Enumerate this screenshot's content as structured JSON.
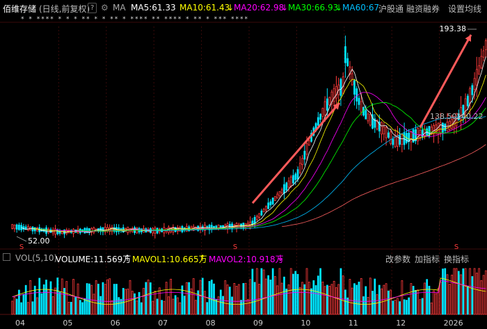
{
  "header": {
    "stock_name": "佰维存储",
    "period": "(日线,前复权)",
    "help": "?",
    "ma_label": "MA",
    "ma5": "MA5:61.33",
    "ma10": "MA10:61.43",
    "ma10_arrow": "↓",
    "ma20": "MA20:62.98",
    "ma20_arrow": "↓",
    "ma30": "MA30:66.93",
    "ma30_arrow": "↓",
    "ma60": "MA60:67",
    "tools": [
      "沪股通",
      "融资融券",
      "设置均线"
    ]
  },
  "markers_row": "* * **** * * * ** * * ** * **** ** **** * ** * *** ****",
  "volume_bar": {
    "vol_label": "VOL(5,10)",
    "volume": "VOLUME:11.569万",
    "volume_arrow": "↑",
    "mavol1": "MAVOL1:10.665万",
    "mavol1_arrow": "↑",
    "mavol2": "MAVOL2:10.918万",
    "mavol2_arrow": "↓",
    "tools": [
      "改参数",
      "加指标",
      "换指标"
    ]
  },
  "colors": {
    "up": "#ff3b3b",
    "down": "#00e5ff",
    "ma5": "#ffffff",
    "ma10": "#ffff00",
    "ma20": "#ff00ff",
    "ma30": "#00ff00",
    "ma60": "#00bfff",
    "long_ma": "#ff6060",
    "arrow": "#ff5a5a",
    "grid": "#3a0a0a"
  },
  "chart_data": {
    "type": "candlestick",
    "x_ticks": [
      "04",
      "05",
      "06",
      "07",
      "08",
      "09",
      "10",
      "11",
      "12",
      "2026"
    ],
    "annotations": {
      "high": "193.38",
      "low": "52.00",
      "price_a": "138.50",
      "price_b": "140.22"
    },
    "signal_markers": [
      "S",
      "S",
      "S"
    ],
    "price_path_segments": [
      {
        "month": "04",
        "start": 58,
        "end": 54
      },
      {
        "month": "05",
        "start": 54,
        "end": 56
      },
      {
        "month": "06",
        "start": 56,
        "end": 55
      },
      {
        "month": "07",
        "start": 55,
        "end": 57
      },
      {
        "month": "08",
        "start": 57,
        "end": 59
      },
      {
        "month": "09",
        "start": 59,
        "end": 95
      },
      {
        "month": "10",
        "start": 95,
        "end": 160
      },
      {
        "month": "11",
        "start": 160,
        "end": 118
      },
      {
        "month": "12",
        "start": 118,
        "end": 128
      },
      {
        "month": "2026",
        "start": 128,
        "end": 193.38
      }
    ]
  }
}
